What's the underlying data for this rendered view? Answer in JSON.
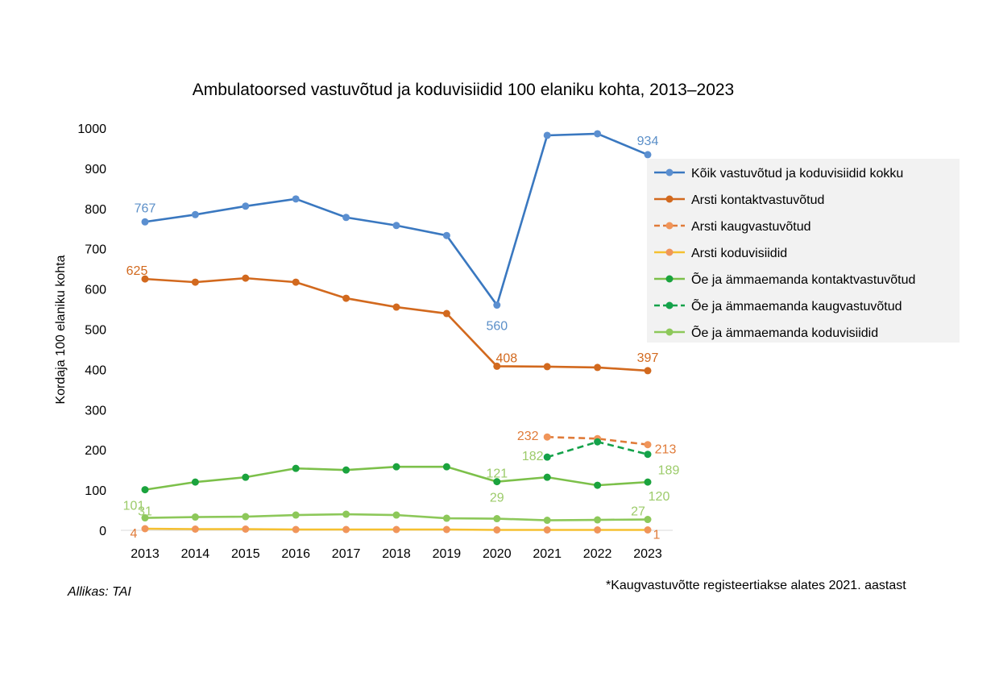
{
  "chart_data": {
    "type": "line",
    "title": "Ambulatoorsed vastuvõtud ja koduvisiidid 100 elaniku kohta, 2013–2023",
    "xlabel": "",
    "ylabel": "Kordaja 100 elaniku kohta",
    "ylim": [
      0,
      1000
    ],
    "yticks": [
      "0",
      "100",
      "200",
      "300",
      "400",
      "500",
      "600",
      "700",
      "800",
      "900",
      "1000"
    ],
    "categories": [
      "2013",
      "2014",
      "2015",
      "2016",
      "2017",
      "2018",
      "2019",
      "2020",
      "2021",
      "2022",
      "2023"
    ],
    "grid": false,
    "legend_position": "right",
    "series": [
      {
        "name": "Kõik vastuvõtud ja koduvisiidid kokku",
        "color": "#3A78C0",
        "marker": "#5B8FD0",
        "dash": false,
        "label_color": "#5B8FC8",
        "values": [
          767,
          785,
          806,
          824,
          778,
          758,
          733,
          560,
          982,
          986,
          934
        ],
        "labels": {
          "0": "767",
          "7": "560",
          "10": "934"
        }
      },
      {
        "name": "Arsti kontaktvastuvõtud",
        "color": "#D2691E",
        "marker": "#D2691E",
        "dash": false,
        "label_color": "#D2691E",
        "values": [
          625,
          617,
          627,
          617,
          577,
          555,
          539,
          408,
          407,
          405,
          397
        ],
        "labels": {
          "0": "625",
          "7": "408",
          "10": "397"
        }
      },
      {
        "name": "Arsti kaugvastuvõtud",
        "color": "#E07B39",
        "marker": "#F0955A",
        "dash": true,
        "label_color": "#E07B39",
        "values": [
          null,
          null,
          null,
          null,
          null,
          null,
          null,
          null,
          232,
          228,
          213
        ],
        "labels": {
          "8": "232",
          "10": "213"
        }
      },
      {
        "name": "Arsti koduvisiidid",
        "color": "#F5C030",
        "marker": "#F0955A",
        "dash": false,
        "label_color": "#E07B39",
        "values": [
          4,
          3,
          3,
          2,
          2,
          2,
          2,
          1,
          1,
          1,
          1
        ],
        "labels": {
          "0": "4",
          "10": "1"
        }
      },
      {
        "name": "Õe ja ämmaemanda kontaktvastuvõtud",
        "color": "#7CC04A",
        "marker": "#1BA33E",
        "dash": false,
        "label_color": "#9CCB6A",
        "values": [
          101,
          120,
          132,
          154,
          150,
          158,
          158,
          121,
          132,
          112,
          120
        ],
        "labels": {
          "0": "101",
          "7": "121",
          "10": "120"
        }
      },
      {
        "name": "Õe ja ämmaemanda kaugvastuvõtud",
        "color": "#14A24A",
        "marker": "#14A24A",
        "dash": true,
        "label_color": "#9CCB6A",
        "values": [
          null,
          null,
          null,
          null,
          null,
          null,
          null,
          null,
          182,
          220,
          189
        ],
        "labels": {
          "8": "182",
          "10": "189"
        }
      },
      {
        "name": "Õe ja ämmaemanda koduvisiidid",
        "color": "#8DC85A",
        "marker": "#8DC85A",
        "dash": false,
        "label_color": "#9CCB6A",
        "values": [
          31,
          33,
          34,
          38,
          40,
          38,
          30,
          29,
          25,
          26,
          27
        ],
        "labels": {
          "0": "31",
          "7": "29",
          "10": "27"
        }
      }
    ]
  },
  "source": "Allikas: TAI",
  "footnote": "*Kaugvastuvõtte registeertiakse alates 2021. aastast"
}
